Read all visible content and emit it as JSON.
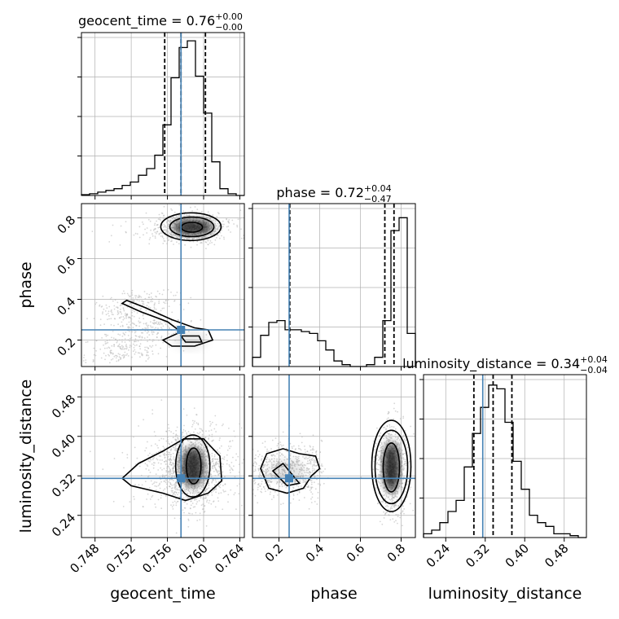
{
  "colors": {
    "truth": "#4682b4",
    "hist": "#000000",
    "grid": "#b0b0b0",
    "points": "#b5b5b5",
    "contour": "#000000"
  },
  "chart_data": {
    "type": "corner",
    "parameters": [
      "geocent_time",
      "phase",
      "luminosity_distance"
    ],
    "axis_labels": {
      "x": [
        "geocent_time",
        "phase",
        "luminosity_distance"
      ],
      "y": [
        "",
        "phase",
        "luminosity_distance"
      ]
    },
    "titles": [
      {
        "name": "geocent_time",
        "value": "0.76",
        "plus": "+0.00",
        "minus": "−0.00"
      },
      {
        "name": "phase",
        "value": "0.72",
        "plus": "+0.04",
        "minus": "−0.47"
      },
      {
        "name": "luminosity_distance",
        "value": "0.34",
        "plus": "+0.04",
        "minus": "−0.04"
      }
    ],
    "ranges": {
      "geocent_time": [
        0.7465,
        0.7645
      ],
      "phase": [
        0.07,
        0.87
      ],
      "luminosity_distance": [
        0.195,
        0.525
      ]
    },
    "ticks": {
      "geocent_time": {
        "values": [
          0.748,
          0.752,
          0.756,
          0.76,
          0.764
        ],
        "labels": [
          "0.748",
          "0.752",
          "0.756",
          "0.760",
          "0.764"
        ]
      },
      "phase": {
        "values": [
          0.2,
          0.4,
          0.6,
          0.8
        ],
        "labels": [
          "0.2",
          "0.4",
          "0.6",
          "0.8"
        ]
      },
      "luminosity_distance": {
        "values": [
          0.24,
          0.32,
          0.4,
          0.48
        ],
        "labels": [
          "0.24",
          "0.32",
          "0.40",
          "0.48"
        ]
      }
    },
    "truths": {
      "geocent_time": 0.7575,
      "phase": 0.25,
      "luminosity_distance": 0.315
    },
    "quantiles": {
      "geocent_time": [
        0.7557,
        0.7575,
        0.7602
      ],
      "phase": [
        0.253,
        0.72,
        0.765
      ],
      "luminosity_distance": [
        0.297,
        0.336,
        0.374
      ]
    },
    "histograms": {
      "geocent_time": [
        0.005,
        0.01,
        0.02,
        0.03,
        0.04,
        0.06,
        0.08,
        0.12,
        0.16,
        0.24,
        0.42,
        0.7,
        0.88,
        0.92,
        0.71,
        0.49,
        0.2,
        0.04,
        0.01,
        0.0
      ],
      "phase": [
        0.05,
        0.17,
        0.24,
        0.25,
        0.2,
        0.2,
        0.19,
        0.18,
        0.14,
        0.09,
        0.03,
        0.01,
        0.0,
        0.0,
        0.01,
        0.05,
        0.25,
        0.74,
        0.81,
        0.18
      ],
      "luminosity_distance": [
        0.02,
        0.04,
        0.08,
        0.14,
        0.2,
        0.38,
        0.56,
        0.7,
        0.82,
        0.8,
        0.62,
        0.41,
        0.26,
        0.12,
        0.08,
        0.06,
        0.02,
        0.02,
        0.01,
        0.0
      ]
    },
    "histogram_max": {
      "geocent_time": 0.94,
      "phase": 0.86,
      "luminosity_distance": 0.85
    }
  }
}
